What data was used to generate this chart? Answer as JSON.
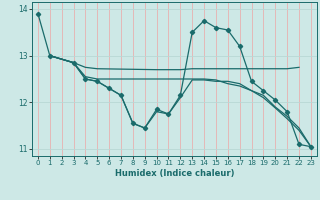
{
  "xlabel": "Humidex (Indice chaleur)",
  "xlim": [
    -0.5,
    23.5
  ],
  "ylim": [
    10.85,
    14.15
  ],
  "yticks": [
    11,
    12,
    13,
    14
  ],
  "xticks": [
    0,
    1,
    2,
    3,
    4,
    5,
    6,
    7,
    8,
    9,
    10,
    11,
    12,
    13,
    14,
    15,
    16,
    17,
    18,
    19,
    20,
    21,
    22,
    23
  ],
  "bg_color": "#cde8e6",
  "line_color": "#1a6b6b",
  "grid_color_v": "#e8b0b0",
  "grid_color_h": "#b8d8d5",
  "series": [
    {
      "x": [
        0,
        1,
        3,
        4,
        5,
        6,
        7,
        8,
        9,
        10,
        11,
        12,
        13,
        14,
        15,
        16,
        17,
        18,
        19,
        20,
        21,
        22,
        23
      ],
      "y": [
        13.9,
        13.0,
        12.85,
        12.5,
        12.45,
        12.3,
        12.15,
        11.55,
        11.45,
        11.85,
        11.75,
        12.15,
        13.5,
        13.75,
        13.6,
        13.55,
        13.2,
        12.45,
        12.25,
        12.05,
        11.8,
        11.1,
        11.05
      ],
      "has_marker": true
    },
    {
      "x": [
        1,
        3,
        4,
        5,
        10,
        11,
        12,
        13,
        14,
        15,
        16,
        17,
        18,
        19,
        20,
        21,
        22
      ],
      "y": [
        13.0,
        12.85,
        12.75,
        12.72,
        12.7,
        12.7,
        12.7,
        12.72,
        12.72,
        12.72,
        12.72,
        12.72,
        12.72,
        12.72,
        12.72,
        12.72,
        12.75
      ],
      "has_marker": false
    },
    {
      "x": [
        1,
        3,
        4,
        5,
        10,
        11,
        12,
        13,
        14,
        15,
        16,
        17,
        18,
        19,
        20,
        21,
        22,
        23
      ],
      "y": [
        13.0,
        12.85,
        12.55,
        12.5,
        12.5,
        12.5,
        12.5,
        12.5,
        12.5,
        12.48,
        12.4,
        12.35,
        12.25,
        12.15,
        11.9,
        11.7,
        11.45,
        11.05
      ],
      "has_marker": false
    },
    {
      "x": [
        1,
        3,
        4,
        5,
        6,
        7,
        8,
        9,
        10,
        11,
        12,
        13,
        14,
        15,
        16,
        17,
        18,
        19,
        20,
        21,
        22,
        23
      ],
      "y": [
        13.0,
        12.85,
        12.5,
        12.45,
        12.3,
        12.15,
        11.55,
        11.45,
        11.8,
        11.75,
        12.1,
        12.48,
        12.48,
        12.45,
        12.45,
        12.4,
        12.25,
        12.1,
        11.88,
        11.65,
        11.4,
        11.05
      ],
      "has_marker": false
    }
  ]
}
